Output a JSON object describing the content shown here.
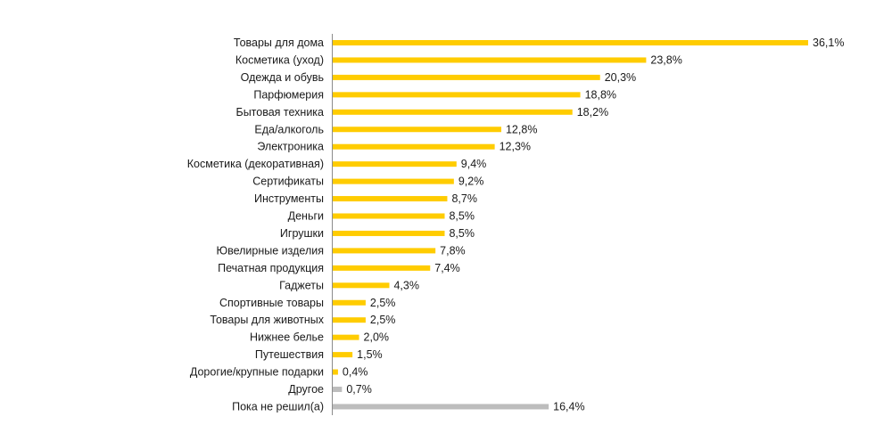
{
  "chart_data": {
    "type": "bar",
    "orientation": "horizontal",
    "title": "",
    "xlabel": "",
    "ylabel": "",
    "value_suffix": "%",
    "decimal_separator": ",",
    "xlim": [
      0,
      36.1
    ],
    "grid": false,
    "legend": "none",
    "categories": [
      "Товары для дома",
      "Косметика (уход)",
      "Одежда и обувь",
      "Парфюмерия",
      "Бытовая техника",
      "Еда/алкоголь",
      "Электроника",
      "Косметика (декоративная)",
      "Сертификаты",
      "Инструменты",
      "Деньги",
      "Игрушки",
      "Ювелирные изделия",
      "Печатная продукция",
      "Гаджеты",
      "Спортивные товары",
      "Товары для животных",
      "Нижнее белье",
      "Путешествия",
      "Дорогие/крупные подарки",
      "Другое",
      "Пока не решил(а)"
    ],
    "values": [
      36.1,
      23.8,
      20.3,
      18.8,
      18.2,
      12.8,
      12.3,
      9.4,
      9.2,
      8.7,
      8.5,
      8.5,
      7.8,
      7.4,
      4.3,
      2.5,
      2.5,
      2.0,
      1.5,
      0.4,
      0.7,
      16.4
    ],
    "value_labels": [
      "36,1%",
      "23,8%",
      "20,3%",
      "18,8%",
      "18,2%",
      "12,8%",
      "12,3%",
      "9,4%",
      "9,2%",
      "8,7%",
      "8,5%",
      "8,5%",
      "7,8%",
      "7,4%",
      "4,3%",
      "2,5%",
      "2,5%",
      "2,0%",
      "1,5%",
      "0,4%",
      "0,7%",
      "16,4%"
    ],
    "bar_colors": [
      "#FFCC00",
      "#FFCC00",
      "#FFCC00",
      "#FFCC00",
      "#FFCC00",
      "#FFCC00",
      "#FFCC00",
      "#FFCC00",
      "#FFCC00",
      "#FFCC00",
      "#FFCC00",
      "#FFCC00",
      "#FFCC00",
      "#FFCC00",
      "#FFCC00",
      "#FFCC00",
      "#FFCC00",
      "#FFCC00",
      "#FFCC00",
      "#FFCC00",
      "#BDBDBD",
      "#BDBDBD"
    ],
    "colors": {
      "primary": "#FFCC00",
      "secondary": "#BDBDBD",
      "axis": "#8c8c8c",
      "text": "#1a1a1a"
    }
  }
}
